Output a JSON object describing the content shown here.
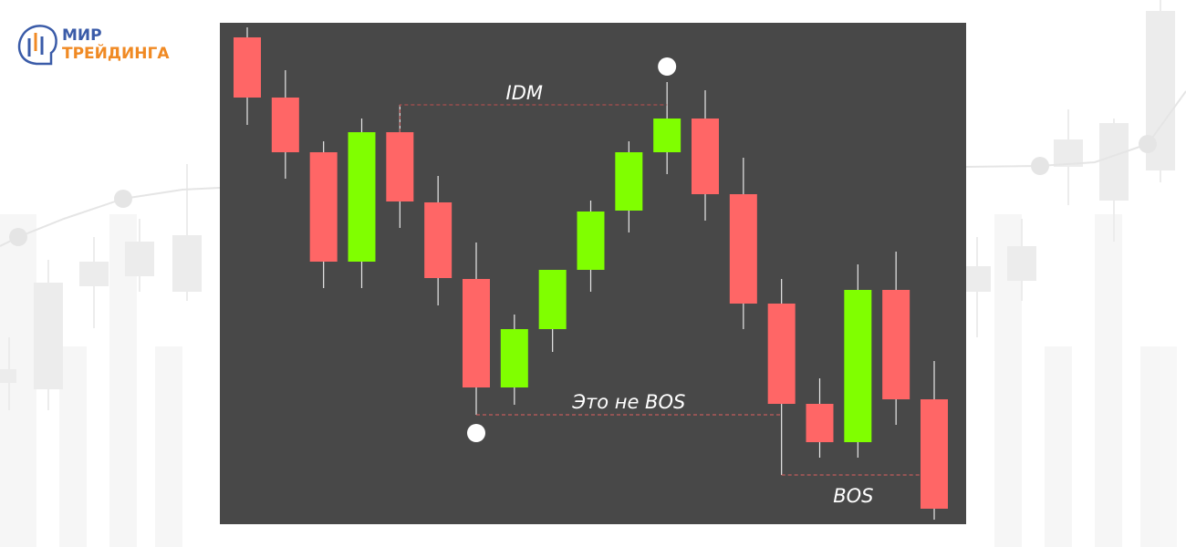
{
  "logo": {
    "line1": "МИР",
    "line2": "ТРЕЙДИНГА"
  },
  "chart_data": {
    "type": "candlestick",
    "open": [
      534,
      468,
      408,
      288,
      430,
      353,
      269,
      150,
      214,
      279,
      344,
      408,
      445,
      362,
      242,
      132,
      90,
      257,
      137
    ],
    "high": [
      545,
      498,
      420,
      445,
      460,
      382,
      309,
      230,
      279,
      355,
      420,
      485,
      476,
      402,
      269,
      160,
      285,
      299,
      179
    ],
    "low": [
      438,
      379,
      259,
      259,
      325,
      240,
      120,
      131,
      189,
      255,
      320,
      384,
      333,
      214,
      54,
      73,
      73,
      109,
      5
    ],
    "close": [
      468,
      408,
      288,
      430,
      354,
      270,
      150,
      214,
      279,
      343,
      408,
      445,
      362,
      242,
      132,
      90,
      257,
      137,
      17
    ],
    "up_color": "#80ff00",
    "down_color": "#ff6666",
    "ylim": [
      0,
      550
    ],
    "annotations": [
      "IDM",
      "Это не BOS",
      "BOS"
    ]
  }
}
